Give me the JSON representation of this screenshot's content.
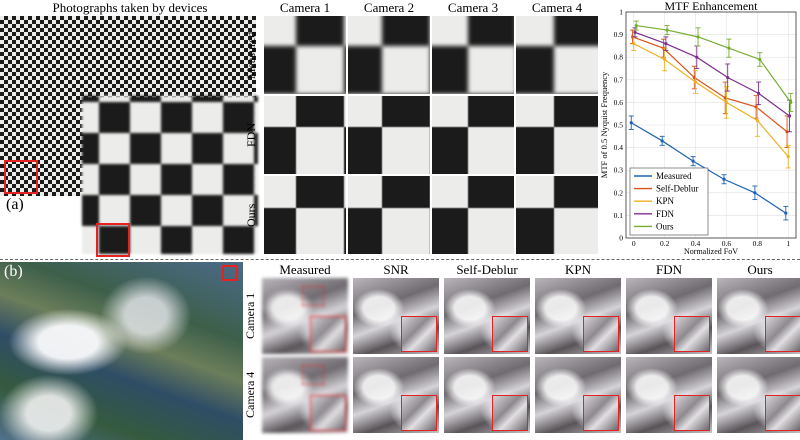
{
  "panel_a": {
    "label": "(a)",
    "title": "Photographs taken by devices",
    "columns": [
      "Camera 1",
      "Camera 2",
      "Camera 3",
      "Camera 4"
    ],
    "rows": [
      "Measured",
      "FDN",
      "Ours"
    ]
  },
  "panel_b": {
    "label": "(b)",
    "columns": [
      "Measured",
      "SNR",
      "Self-Deblur",
      "KPN",
      "FDN",
      "Ours"
    ],
    "rows": [
      "Camera 1",
      "Camera 4"
    ]
  },
  "chart_data": {
    "type": "line",
    "title": "MTF Enhancement",
    "xlabel": "Normalized FoV",
    "ylabel": "MTF of 0.5 Nyquist Frequency",
    "xlim": [
      -0.05,
      1.05
    ],
    "ylim": [
      0,
      1
    ],
    "xticks": [
      0,
      0.2,
      0.4,
      0.6,
      0.8,
      1
    ],
    "xtick_labels": [
      "0",
      "0.2",
      "0.4",
      "0.6",
      "0.8",
      "1"
    ],
    "yticks": [
      0,
      0.1,
      0.2,
      0.3,
      0.4,
      0.5,
      0.6,
      0.7,
      0.8,
      0.9,
      1
    ],
    "ytick_labels": [
      "0",
      "0.1",
      "0.2",
      "0.3",
      "0.4",
      "0.5",
      "0.6",
      "0.7",
      "0.8",
      "0.9",
      "1"
    ],
    "grid": true,
    "legend": "bottom-left",
    "x": [
      0,
      0.2,
      0.4,
      0.6,
      0.8,
      1
    ],
    "series": [
      {
        "name": "Measured",
        "color": "#1f63b0",
        "y": [
          0.51,
          0.43,
          0.34,
          0.26,
          0.2,
          0.11
        ],
        "err": [
          0.03,
          0.02,
          0.02,
          0.02,
          0.03,
          0.03
        ]
      },
      {
        "name": "Self-Deblur",
        "color": "#d95319",
        "y": [
          0.89,
          0.84,
          0.71,
          0.62,
          0.58,
          0.47
        ],
        "err": [
          0.03,
          0.04,
          0.05,
          0.07,
          0.05,
          0.07
        ]
      },
      {
        "name": "KPN",
        "color": "#edb120",
        "y": [
          0.86,
          0.79,
          0.69,
          0.6,
          0.52,
          0.36
        ],
        "err": [
          0.03,
          0.05,
          0.05,
          0.07,
          0.07,
          0.05
        ]
      },
      {
        "name": "FDN",
        "color": "#7e2f8e",
        "y": [
          0.91,
          0.86,
          0.8,
          0.71,
          0.64,
          0.54
        ],
        "err": [
          0.02,
          0.03,
          0.05,
          0.06,
          0.05,
          0.07
        ]
      },
      {
        "name": "Ours",
        "color": "#77ac30",
        "y": [
          0.94,
          0.92,
          0.89,
          0.84,
          0.79,
          0.6
        ],
        "err": [
          0.02,
          0.02,
          0.04,
          0.04,
          0.03,
          0.04
        ]
      }
    ]
  }
}
